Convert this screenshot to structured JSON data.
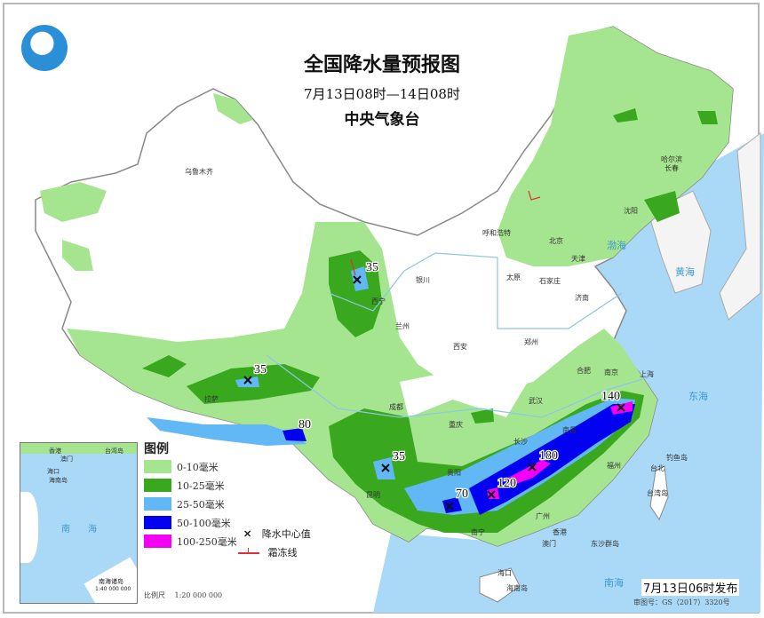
{
  "header": {
    "title": "全国降水量预报图",
    "period": "7月13日08时—14日08时",
    "agency": "中央气象台",
    "logo_icon": "cma-logo-icon"
  },
  "legend": {
    "title": "图例",
    "items": [
      {
        "label": "0-10毫米",
        "color": "#a6e58f"
      },
      {
        "label": "10-25毫米",
        "color": "#3aa81e"
      },
      {
        "label": "25-50毫米",
        "color": "#62b7f5"
      },
      {
        "label": "50-100毫米",
        "color": "#0202f0"
      },
      {
        "label": "100-250毫米",
        "color": "#f500f5"
      }
    ],
    "center_symbol_label": "降水中心值",
    "frost_line_label": "霜冻线"
  },
  "scale": {
    "label": "比例尺",
    "value": "1:20 000 000"
  },
  "inset": {
    "labels": [
      "香港",
      "台湾岛",
      "澳门",
      "海口",
      "海南岛",
      "南海"
    ],
    "title": "南海诸岛",
    "scale": "1:40 000 000"
  },
  "footer": {
    "issued": "7月13日06时发布",
    "approval": "审图号：GS（2017）3320号"
  },
  "center_values": [
    "35",
    "35",
    "80",
    "35",
    "70",
    "120",
    "180",
    "140"
  ],
  "cities": [
    "乌鲁木齐",
    "哈尔滨",
    "长春",
    "沈阳",
    "呼和浩特",
    "北京",
    "天津",
    "太原",
    "石家庄",
    "银川",
    "西宁",
    "兰州",
    "济南",
    "西安",
    "郑州",
    "合肥",
    "南京",
    "上海",
    "武汉",
    "成都",
    "重庆",
    "长沙",
    "南昌",
    "福州",
    "台北",
    "台湾岛",
    "贵阳",
    "昆明",
    "拉萨",
    "南宁",
    "广州",
    "香港",
    "澳门",
    "海口",
    "海南岛",
    "钓鱼岛",
    "东沙群岛"
  ],
  "seas": [
    "渤海",
    "黄海",
    "东海",
    "南海"
  ],
  "colors": {
    "sea": "#a9d9f7",
    "land": "#ffffff",
    "border": "#888888",
    "frost_line": "#e03030"
  }
}
